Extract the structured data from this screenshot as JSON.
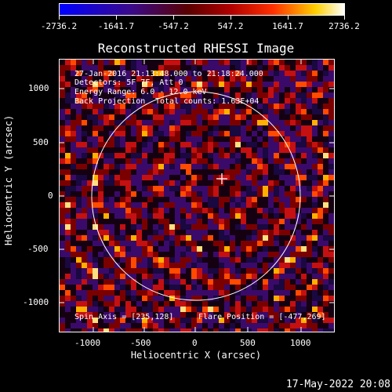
{
  "colorbar": {
    "labels": [
      "-2736.2",
      "-1641.7",
      "-547.2",
      "547.2",
      "1641.7",
      "2736.2"
    ]
  },
  "title": "Reconstructed RHESSI Image",
  "annotations": {
    "time_range": "27-Jan-2016 21:13:48.000 to 21:18:24.000",
    "detectors": "Detectors: 5F 7F, Att 0",
    "energy": "Energy Range: 6.0 - 12.0 keV",
    "method": "Back Projection",
    "counts": "Total counts: 1.63E+04",
    "spin_axis": "Spin Axis = [235,128]",
    "flare_position": "Flare Position = [-477,269]"
  },
  "axes": {
    "xlabel": "Heliocentric X (arcsec)",
    "ylabel": "Heliocentric Y (arcsec)",
    "xticks": [
      "-1000",
      "-500",
      "0",
      "500",
      "1000"
    ],
    "yticks": [
      "1000",
      "500",
      "0",
      "-500",
      "-1000"
    ]
  },
  "footer_date": "17-May-2022 20:08",
  "colors": {
    "background": "#000000",
    "limb": "#ffffff"
  }
}
